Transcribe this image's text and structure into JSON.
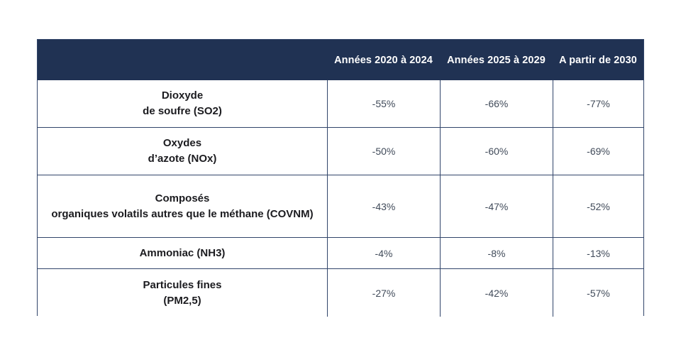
{
  "table": {
    "header": {
      "col_pollutant": "",
      "columns": [
        "Années 2020 à 2024",
        "Années 2025 à 2029",
        "A partir de 2030"
      ]
    },
    "rows": [
      {
        "label_lines": [
          "Dioxyde",
          "de soufre (SO2)"
        ],
        "values": [
          "-55%",
          "-66%",
          "-77%"
        ]
      },
      {
        "label_lines": [
          "Oxydes",
          "d’azote (NOx)"
        ],
        "values": [
          "-50%",
          "-60%",
          "-69%"
        ]
      },
      {
        "label_lines": [
          "Composés",
          "organiques volatils autres que le méthane (COVNM)"
        ],
        "values": [
          "-43%",
          "-47%",
          "-52%"
        ]
      },
      {
        "label_lines": [
          "Ammoniac (NH3)",
          ""
        ],
        "values": [
          "-4%",
          "-8%",
          "-13%"
        ]
      },
      {
        "label_lines": [
          "Particules fines",
          "(PM2,5)"
        ],
        "values": [
          "-27%",
          "-42%",
          "-57%"
        ]
      }
    ]
  },
  "colors": {
    "header_bg": "#203253",
    "header_text": "#ffffff",
    "border": "#31456a",
    "label_text": "#1b1b1f",
    "value_text": "#414b5a",
    "page_bg": "#ffffff"
  },
  "chart_data": {
    "type": "table",
    "title": "",
    "columns": [
      "",
      "Années 2020 à 2024",
      "Années 2025 à 2029",
      "A partir de 2030"
    ],
    "rows": [
      [
        "Dioxyde de soufre (SO2)",
        "-55%",
        "-66%",
        "-77%"
      ],
      [
        "Oxydes d’azote (NOx)",
        "-50%",
        "-60%",
        "-69%"
      ],
      [
        "Composés organiques volatils autres que le méthane (COVNM)",
        "-43%",
        "-47%",
        "-52%"
      ],
      [
        "Ammoniac (NH3)",
        "-4%",
        "-8%",
        "-13%"
      ],
      [
        "Particules fines (PM2,5)",
        "-27%",
        "-42%",
        "-57%"
      ]
    ]
  }
}
